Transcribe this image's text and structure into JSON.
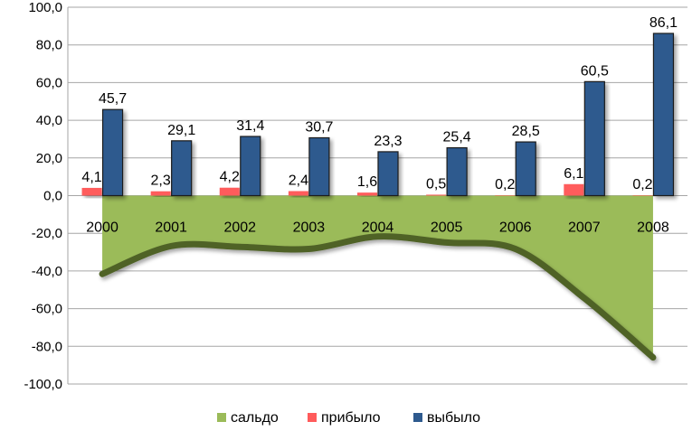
{
  "chart_data": {
    "type": "bar",
    "categories": [
      "2000",
      "2001",
      "2002",
      "2003",
      "2004",
      "2005",
      "2006",
      "2007",
      "2008"
    ],
    "series": [
      {
        "name": "сальдо",
        "type": "area",
        "values": [
          -41.6,
          -26.8,
          -27.2,
          -28.3,
          -21.7,
          -24.9,
          -28.3,
          -54.4,
          -85.9
        ],
        "color": "#9bbb59",
        "line_color": "#4f6228"
      },
      {
        "name": "прибыло",
        "type": "bar",
        "values": [
          4.1,
          2.3,
          4.2,
          2.4,
          1.6,
          0.5,
          0.2,
          6.1,
          0.2
        ],
        "labels": [
          "4,1",
          "2,3",
          "4,2",
          "2,4",
          "1,6",
          "0,5",
          "0,2",
          "6,1",
          "0,2"
        ],
        "color": "#ff5b5b"
      },
      {
        "name": "выбыло",
        "type": "bar",
        "values": [
          45.7,
          29.1,
          31.4,
          30.7,
          23.3,
          25.4,
          28.5,
          60.5,
          86.1
        ],
        "labels": [
          "45,7",
          "29,1",
          "31,4",
          "30,7",
          "23,3",
          "25,4",
          "28,5",
          "60,5",
          "86,1"
        ],
        "color": "#2e5a8e"
      }
    ],
    "ylim": [
      -100,
      100
    ],
    "yticks": [
      -100,
      -80,
      -60,
      -40,
      -20,
      0,
      20,
      40,
      60,
      80,
      100
    ],
    "ytick_labels": [
      "-100,0",
      "-80,0",
      "-60,0",
      "-40,0",
      "-20,0",
      "0,0",
      "20,0",
      "40,0",
      "60,0",
      "80,0",
      "100,0"
    ],
    "grid": true,
    "legend": "bottom",
    "title": "",
    "xlabel": "",
    "ylabel": ""
  }
}
